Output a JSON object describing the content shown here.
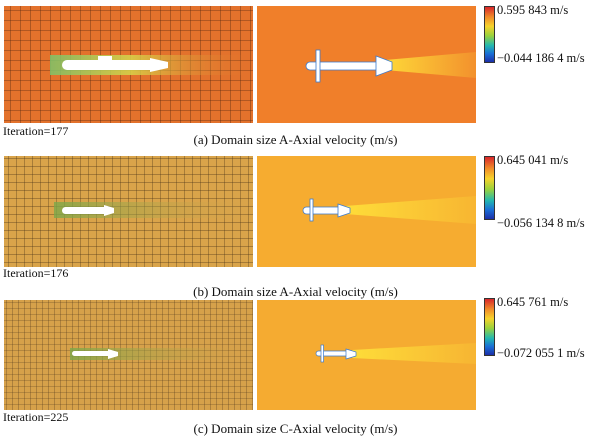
{
  "panels": [
    {
      "iteration": "Iteration=177",
      "caption": "(a) Domain size A-Axial velocity (m/s)",
      "scale_max": "0.595 843 m/s",
      "scale_min": "−0.044 186 4 m/s",
      "colors": {
        "left_bg": "#e3722c",
        "right_bg": "#f07f2a",
        "wake": "#ffe23a"
      }
    },
    {
      "iteration": "Iteration=176",
      "caption": "(b) Domain size A-Axial velocity (m/s)",
      "scale_max": "0.645 041 m/s",
      "scale_min": "−0.056 134 8 m/s",
      "colors": {
        "left_bg": "#d9a44a",
        "right_bg": "#f6ac30",
        "wake": "#ffe23a"
      }
    },
    {
      "iteration": "Iteration=225",
      "caption": "(c) Domain size C-Axial velocity (m/s)",
      "scale_max": "0.645 761 m/s",
      "scale_min": "−0.072 055 1 m/s",
      "colors": {
        "left_bg": "#d6a14a",
        "right_bg": "#f5ab31",
        "wake": "#ffe23a"
      }
    }
  ]
}
